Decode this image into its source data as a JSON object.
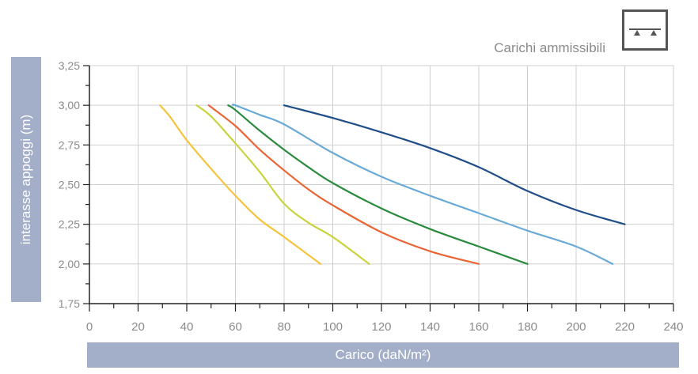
{
  "subtitle": "Carichi ammissibili",
  "icon": "supported-beam-icon",
  "chart_data": {
    "type": "line",
    "xlabel": "Carico (daN/m²)",
    "ylabel": "interasse appoggi (m)",
    "xlim": [
      0,
      240
    ],
    "ylim": [
      1.75,
      3.25
    ],
    "xticks": [
      "0",
      "20",
      "40",
      "60",
      "80",
      "100",
      "120",
      "140",
      "160",
      "180",
      "200",
      "220",
      "240"
    ],
    "yticks": [
      "1,75",
      "2,00",
      "2,25",
      "2,50",
      "2,75",
      "3,00",
      "3,25"
    ],
    "grid": true,
    "series": [
      {
        "color": "#f6c33d",
        "x": [
          29,
          33,
          40,
          50,
          60,
          70,
          80,
          95
        ],
        "y": [
          3.0,
          2.93,
          2.78,
          2.6,
          2.43,
          2.28,
          2.17,
          2.0
        ]
      },
      {
        "color": "#c8d33d",
        "x": [
          44,
          50,
          60,
          70,
          80,
          90,
          100,
          115
        ],
        "y": [
          3.0,
          2.93,
          2.76,
          2.58,
          2.38,
          2.26,
          2.17,
          2.0
        ]
      },
      {
        "color": "#ea6535",
        "x": [
          49,
          60,
          70,
          80,
          90,
          100,
          120,
          140,
          160
        ],
        "y": [
          3.0,
          2.87,
          2.72,
          2.59,
          2.47,
          2.37,
          2.2,
          2.08,
          2.0
        ]
      },
      {
        "color": "#2a8a3d",
        "x": [
          57,
          60,
          70,
          80,
          90,
          100,
          120,
          140,
          160,
          180
        ],
        "y": [
          3.0,
          2.97,
          2.84,
          2.72,
          2.61,
          2.51,
          2.35,
          2.22,
          2.11,
          2.0
        ]
      },
      {
        "color": "#6aaad6",
        "x": [
          59,
          60,
          70,
          80,
          100,
          120,
          140,
          160,
          180,
          200,
          215
        ],
        "y": [
          3.0,
          3.0,
          2.94,
          2.88,
          2.7,
          2.55,
          2.43,
          2.32,
          2.21,
          2.11,
          2.0
        ]
      },
      {
        "color": "#1f4e88",
        "x": [
          80,
          100,
          120,
          140,
          160,
          180,
          200,
          220
        ],
        "y": [
          3.0,
          2.92,
          2.83,
          2.73,
          2.61,
          2.46,
          2.34,
          2.25
        ]
      }
    ]
  }
}
